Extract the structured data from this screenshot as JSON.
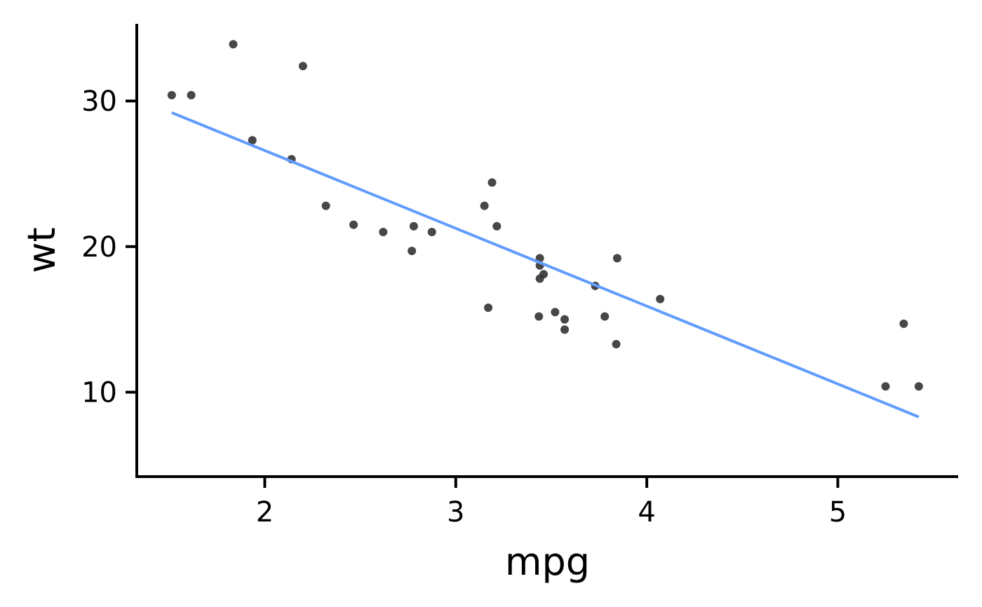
{
  "chart_data": {
    "type": "scatter",
    "xlabel": "mpg",
    "ylabel": "wt",
    "xlim": [
      1.33,
      5.63
    ],
    "ylim": [
      4.2,
      35.3
    ],
    "x_ticks": [
      2,
      3,
      4,
      5
    ],
    "y_ticks": [
      10,
      20,
      30
    ],
    "x_tick_labels": [
      "2",
      "3",
      "4",
      "5"
    ],
    "y_tick_labels": [
      "10",
      "20",
      "30"
    ],
    "grid": false,
    "point_color": "#333333",
    "fit_line_color": "#619CFF",
    "points": [
      {
        "x": 1.513,
        "y": 30.4
      },
      {
        "x": 1.615,
        "y": 30.4
      },
      {
        "x": 1.835,
        "y": 33.9
      },
      {
        "x": 1.935,
        "y": 27.3
      },
      {
        "x": 2.14,
        "y": 26.0
      },
      {
        "x": 2.2,
        "y": 32.4
      },
      {
        "x": 2.32,
        "y": 22.8
      },
      {
        "x": 2.465,
        "y": 21.5
      },
      {
        "x": 2.62,
        "y": 21.0
      },
      {
        "x": 2.77,
        "y": 19.7
      },
      {
        "x": 2.78,
        "y": 21.4
      },
      {
        "x": 2.875,
        "y": 21.0
      },
      {
        "x": 3.15,
        "y": 22.8
      },
      {
        "x": 3.17,
        "y": 15.8
      },
      {
        "x": 3.19,
        "y": 24.4
      },
      {
        "x": 3.215,
        "y": 21.4
      },
      {
        "x": 3.435,
        "y": 15.2
      },
      {
        "x": 3.44,
        "y": 19.2
      },
      {
        "x": 3.44,
        "y": 18.7
      },
      {
        "x": 3.44,
        "y": 17.8
      },
      {
        "x": 3.46,
        "y": 18.1
      },
      {
        "x": 3.52,
        "y": 15.5
      },
      {
        "x": 3.57,
        "y": 15.0
      },
      {
        "x": 3.57,
        "y": 14.3
      },
      {
        "x": 3.73,
        "y": 17.3
      },
      {
        "x": 3.78,
        "y": 15.2
      },
      {
        "x": 3.845,
        "y": 19.2
      },
      {
        "x": 3.84,
        "y": 13.3
      },
      {
        "x": 4.07,
        "y": 16.4
      },
      {
        "x": 5.25,
        "y": 10.4
      },
      {
        "x": 5.345,
        "y": 14.7
      },
      {
        "x": 5.424,
        "y": 10.4
      }
    ],
    "fit_line": [
      {
        "x": 1.513,
        "y": 29.2
      },
      {
        "x": 5.424,
        "y": 8.3
      }
    ]
  }
}
